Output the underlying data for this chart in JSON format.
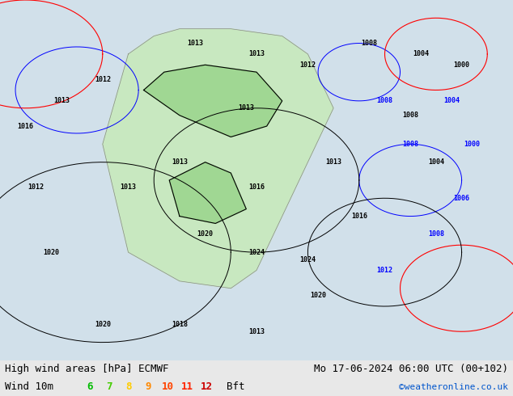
{
  "title_left": "High wind areas [hPa] ECMWF",
  "title_right": "Mo 17-06-2024 06:00 UTC (00+102)",
  "legend_label": "Wind 10m",
  "legend_values": [
    "6",
    "7",
    "8",
    "9",
    "10",
    "11",
    "12"
  ],
  "legend_unit": "Bft",
  "legend_colors": [
    "#00cc00",
    "#00cc00",
    "#ffaa00",
    "#ffaa00",
    "#ff4400",
    "#ff0000",
    "#cc0000"
  ],
  "copyright": "©weatheronline.co.uk",
  "copyright_color": "#0055cc",
  "bg_color": "#e8e8e8",
  "map_bg": "#f0f0f0",
  "bottom_bar_color": "#f0f0f0",
  "figsize": [
    6.34,
    4.9
  ],
  "dpi": 100,
  "map_image_placeholder": true,
  "title_fontsize": 9,
  "legend_fontsize": 9,
  "copyright_fontsize": 8
}
